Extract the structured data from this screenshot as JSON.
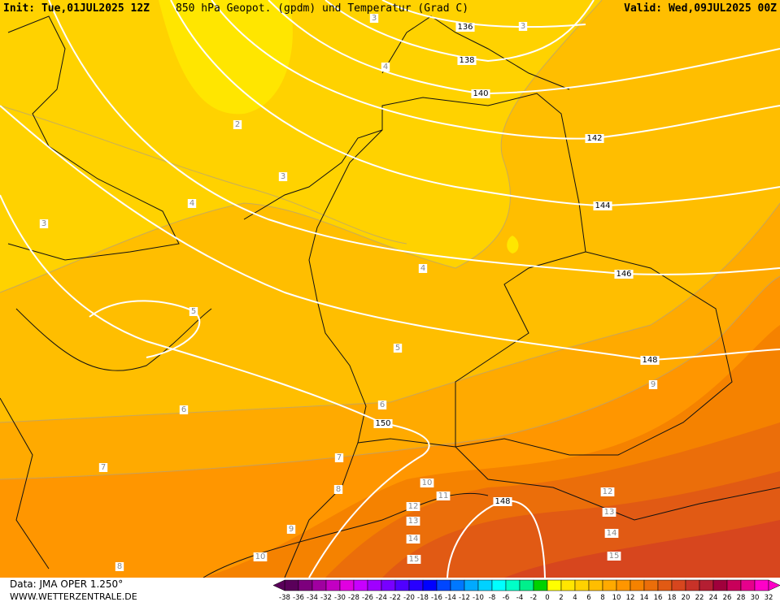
{
  "header": {
    "init": "Init: Tue,01JUL2025 12Z",
    "title": "850 hPa Geopot. (gpdm) und Temperatur (Grad C)",
    "valid": "Valid: Wed,09JUL2025 00Z"
  },
  "footer": {
    "data_source": "Data: JMA OPER 1.250°",
    "site": "WWW.WETTERZENTRALE.DE"
  },
  "geopotential_labels": [
    136,
    138,
    140,
    142,
    144,
    146,
    148,
    150,
    148
  ],
  "temperature_labels": [
    3,
    3,
    4,
    2,
    3,
    4,
    3,
    4,
    5,
    5,
    9,
    6,
    6,
    7,
    7,
    8,
    10,
    11,
    12,
    12,
    13,
    13,
    9,
    14,
    14,
    10,
    15,
    15,
    8
  ],
  "colorbar": {
    "ticks": [
      -38,
      -36,
      -34,
      -32,
      -30,
      -28,
      -26,
      -24,
      -22,
      -20,
      -18,
      -16,
      -14,
      -12,
      -10,
      -8,
      -6,
      -4,
      -2,
      0,
      2,
      4,
      6,
      8,
      10,
      12,
      14,
      16,
      18,
      20,
      22,
      24,
      26,
      28,
      30,
      32
    ],
    "colors": [
      "#5a005a",
      "#7d007d",
      "#a000a0",
      "#c300c3",
      "#e100e1",
      "#c800ff",
      "#a000ff",
      "#7800ff",
      "#5000ff",
      "#2800ff",
      "#0000ff",
      "#0046ff",
      "#0078ff",
      "#00aaff",
      "#00d2ff",
      "#00ffff",
      "#00ffc8",
      "#00f08c",
      "#00d200",
      "#ffff00",
      "#ffe600",
      "#ffd200",
      "#ffbe00",
      "#ffaa00",
      "#ff9600",
      "#f58200",
      "#eb6e0a",
      "#e15a14",
      "#d7461e",
      "#c83228",
      "#b41e32",
      "#a0003c",
      "#c8005a",
      "#e6008c",
      "#ff00c8"
    ]
  }
}
